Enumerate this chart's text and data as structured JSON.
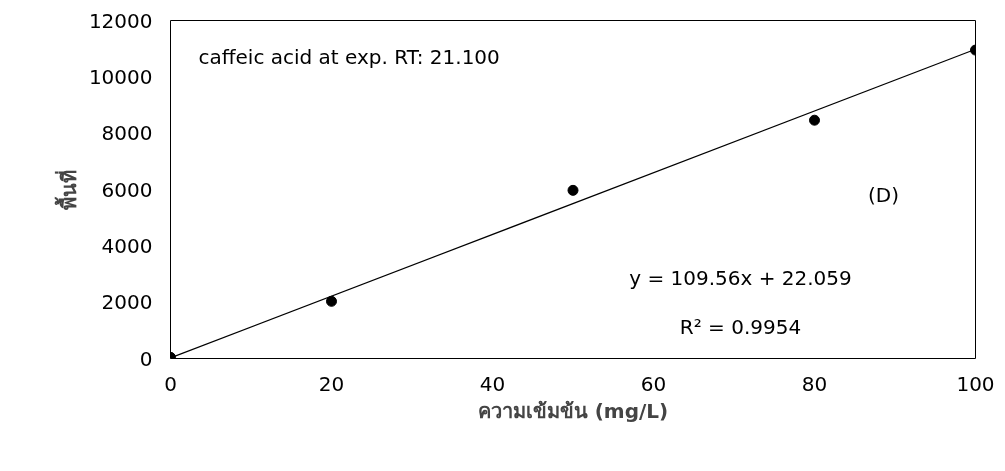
{
  "chart_data": {
    "type": "scatter",
    "xlabel": "ความเข้มข้น (mg/L)",
    "ylabel": "พื้นที่",
    "xlim": [
      0,
      100
    ],
    "xticks": [
      0,
      20,
      40,
      60,
      80,
      100
    ],
    "ylim": [
      0,
      12000
    ],
    "yticks": [
      0,
      2000,
      4000,
      6000,
      8000,
      10000,
      12000
    ],
    "grid": false,
    "series": [
      {
        "color": "#000000",
        "marker": "circle",
        "x": [
          0,
          20,
          50,
          80,
          100
        ],
        "values": [
          40,
          2030,
          5970,
          8460,
          10950
        ]
      },
      {
        "type": "line",
        "color": "#000000",
        "line_style": "solid",
        "x": [
          0,
          100
        ],
        "values": [
          22,
          10978
        ]
      }
    ],
    "annotations": [
      "caffeic acid at exp. RT: 21.100",
      "(D)",
      "y = 109.56x + 22.059",
      "R² = 0.9954"
    ]
  }
}
